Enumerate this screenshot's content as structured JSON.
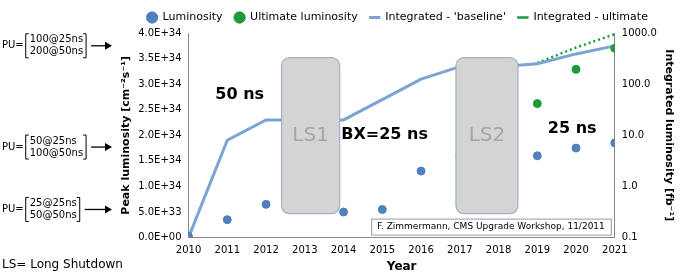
{
  "chart_data": {
    "type": "line",
    "x_label": "Year",
    "y_label": "Peak luminosity [cm⁻²s⁻¹]",
    "y2_label": "Integrated luminosity [fb⁻¹]",
    "x": [
      2010,
      2011,
      2012,
      2013,
      2014,
      2015,
      2016,
      2017,
      2018,
      2019,
      2020,
      2021
    ],
    "xlim": [
      2010,
      2021
    ],
    "xticks": [
      2010,
      2011,
      2012,
      2013,
      2014,
      2015,
      2016,
      2017,
      2018,
      2019,
      2020,
      2021
    ],
    "ylim": [
      0,
      4e+34
    ],
    "yticks": [
      {
        "value": 0,
        "label": "0.0E+00"
      },
      {
        "value": 5e+33,
        "label": "5.0E+33"
      },
      {
        "value": 1e+34,
        "label": "1.0E+34"
      },
      {
        "value": 1.5e+34,
        "label": "1.5E+34"
      },
      {
        "value": 2e+34,
        "label": "2.0E+34"
      },
      {
        "value": 2.5e+34,
        "label": "2.5E+34"
      },
      {
        "value": 3e+34,
        "label": "3.0E+34"
      },
      {
        "value": 3.5e+34,
        "label": "3.5E+34"
      },
      {
        "value": 4e+34,
        "label": "4.0E+34"
      }
    ],
    "y2lim": [
      0.1,
      1000
    ],
    "y2ticks": [
      0.1,
      {
        "value": 1,
        "label": "1.0"
      },
      {
        "value": 10,
        "label": "10.0"
      },
      {
        "value": 100,
        "label": "100.0"
      },
      {
        "value": 1000,
        "label": "1000.0"
      }
    ],
    "log": "y2",
    "grid": false,
    "legend": "top",
    "series": [
      {
        "name": "Luminosity",
        "type": "scatter",
        "marker": "circle",
        "color": "#4f81bd",
        "values": [
          2e+32,
          3.5e+33,
          6.5e+33,
          null,
          5e+33,
          5.5e+33,
          1.3e+34,
          1.6e+34,
          null,
          1.6e+34,
          1.75e+34,
          1.85e+34
        ]
      },
      {
        "name": "Ultimate luminosity",
        "type": "scatter",
        "marker": "circle",
        "color": "#1e9a3c",
        "values": [
          null,
          null,
          null,
          null,
          null,
          null,
          null,
          null,
          null,
          2.62e+34,
          3.29e+34,
          3.7e+34
        ]
      },
      {
        "name": "Integrated - 'baseline'",
        "type": "line",
        "line_style": "solid",
        "color": "#7ba3d3",
        "axis": "y2",
        "values": [
          0.1,
          8,
          20,
          20,
          20,
          50,
          125,
          220,
          220,
          250,
          390,
          560
        ]
      },
      {
        "name": "Integrated - ultimate",
        "type": "line",
        "line_style": "dotted",
        "color": "#1e9a3c",
        "axis": "y2",
        "values": [
          null,
          null,
          null,
          null,
          null,
          null,
          null,
          null,
          null,
          260,
          520,
          950
        ]
      }
    ],
    "shutdowns": [
      {
        "label": "LS1",
        "x": [
          2012.4,
          2013.9
        ]
      },
      {
        "label": "LS2",
        "x": [
          2016.9,
          2018.5
        ]
      }
    ],
    "annotations": [
      "50 ns",
      "BX=25 ns",
      "25 ns"
    ],
    "pileup": [
      {
        "label": "PU=",
        "lines": [
          "100@25ns",
          "200@50ns"
        ],
        "value": 3.75e+34
      },
      {
        "label": "PU=",
        "lines": [
          "50@25ns",
          "100@50ns"
        ],
        "value": 1.77e+34
      },
      {
        "label": "PU=",
        "lines": [
          "25@25ns",
          "50@50ns"
        ],
        "value": 5.5e+33
      }
    ],
    "source": "F. Zimmermann, CMS Upgrade Workshop, 11/2011",
    "footnote": "LS= Long Shutdown"
  }
}
